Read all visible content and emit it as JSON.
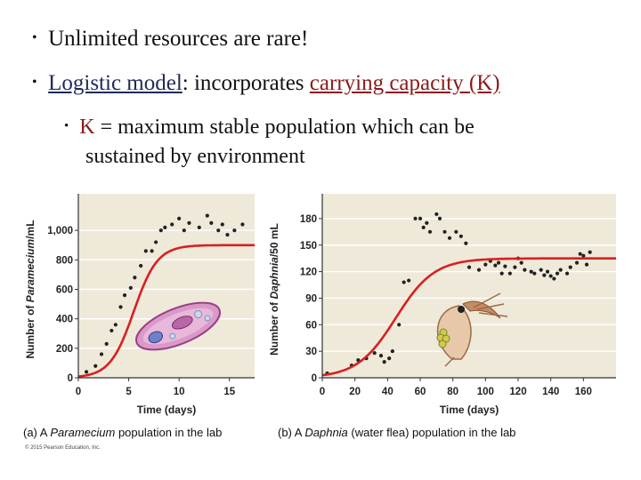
{
  "bullets": {
    "b1": "Unlimited resources are rare!",
    "b2_term": "Logistic model",
    "b2_mid": ": incorporates ",
    "b2_cc": "carrying capacity ",
    "b2_k": "(K)",
    "b3_k": "K",
    "b3_rest": " = maximum stable population which can be",
    "b3_line2": "sustained by environment"
  },
  "colors": {
    "accent": "#8b1a1a",
    "plot_bg": "#efe9da",
    "curve": "#d82020",
    "points": "#222222"
  },
  "caption_a": {
    "prefix": "(a) A ",
    "italic": "Paramecium",
    "suffix": " population in the lab"
  },
  "caption_b": {
    "prefix": "(b) A ",
    "italic": "Daphnia",
    "suffix": " (water flea) population in the lab"
  },
  "copyright": "© 2015 Pearson Education, Inc.",
  "chart_data": [
    {
      "type": "scatter",
      "ylabel_prefix": "Number of ",
      "ylabel_italic": "Paramecium",
      "ylabel_suffix": "/mL",
      "xlabel": "Time (days)",
      "xlim": [
        0,
        17.5
      ],
      "ylim": [
        0,
        1200
      ],
      "xticks": [
        0,
        5,
        10,
        15
      ],
      "yticks": [
        0,
        200,
        400,
        600,
        800,
        1000
      ],
      "ytick_labels": [
        "0",
        "200",
        "400",
        "600",
        "800",
        "1,000"
      ],
      "points": [
        [
          0.8,
          40
        ],
        [
          1.7,
          80
        ],
        [
          2.3,
          160
        ],
        [
          2.8,
          230
        ],
        [
          3.3,
          320
        ],
        [
          3.7,
          360
        ],
        [
          4.2,
          480
        ],
        [
          4.6,
          560
        ],
        [
          5.2,
          610
        ],
        [
          5.6,
          680
        ],
        [
          6.2,
          760
        ],
        [
          6.7,
          860
        ],
        [
          7.3,
          860
        ],
        [
          7.7,
          920
        ],
        [
          8.2,
          1000
        ],
        [
          8.6,
          1020
        ],
        [
          9.3,
          1040
        ],
        [
          10.0,
          1080
        ],
        [
          11.0,
          1050
        ],
        [
          12.0,
          1020
        ],
        [
          13.2,
          1050
        ],
        [
          14.3,
          1040
        ],
        [
          15.5,
          1000
        ],
        [
          16.3,
          1040
        ],
        [
          13.9,
          1000
        ],
        [
          10.5,
          1000
        ],
        [
          12.8,
          1100
        ],
        [
          14.8,
          970
        ]
      ],
      "curve_K": 900,
      "curve_r": 0.85,
      "curve_t0": 5.5
    },
    {
      "type": "scatter",
      "ylabel_prefix": "Number of ",
      "ylabel_italic": "Daphnia",
      "ylabel_suffix": "/50 mL",
      "xlabel": "Time (days)",
      "xlim": [
        0,
        180
      ],
      "ylim": [
        0,
        200
      ],
      "xticks": [
        0,
        20,
        40,
        60,
        80,
        100,
        120,
        140,
        160
      ],
      "yticks": [
        0,
        30,
        60,
        90,
        120,
        150,
        180
      ],
      "points": [
        [
          3,
          5
        ],
        [
          18,
          14
        ],
        [
          22,
          20
        ],
        [
          27,
          22
        ],
        [
          32,
          28
        ],
        [
          36,
          25
        ],
        [
          38,
          18
        ],
        [
          41,
          22
        ],
        [
          43,
          30
        ],
        [
          47,
          60
        ],
        [
          50,
          108
        ],
        [
          53,
          110
        ],
        [
          57,
          180
        ],
        [
          60,
          180
        ],
        [
          62,
          170
        ],
        [
          64,
          175
        ],
        [
          66,
          165
        ],
        [
          70,
          185
        ],
        [
          72,
          180
        ],
        [
          75,
          165
        ],
        [
          78,
          158
        ],
        [
          82,
          165
        ],
        [
          85,
          160
        ],
        [
          88,
          152
        ],
        [
          90,
          125
        ],
        [
          96,
          122
        ],
        [
          100,
          128
        ],
        [
          103,
          132
        ],
        [
          106,
          127
        ],
        [
          108,
          130
        ],
        [
          110,
          118
        ],
        [
          112,
          126
        ],
        [
          115,
          118
        ],
        [
          118,
          125
        ],
        [
          120,
          135
        ],
        [
          122,
          130
        ],
        [
          124,
          122
        ],
        [
          128,
          120
        ],
        [
          130,
          118
        ],
        [
          134,
          122
        ],
        [
          136,
          116
        ],
        [
          138,
          120
        ],
        [
          140,
          115
        ],
        [
          142,
          112
        ],
        [
          144,
          118
        ],
        [
          146,
          122
        ],
        [
          150,
          118
        ],
        [
          152,
          125
        ],
        [
          156,
          130
        ],
        [
          158,
          140
        ],
        [
          160,
          138
        ],
        [
          162,
          128
        ],
        [
          164,
          142
        ]
      ],
      "curve_K": 135,
      "curve_r": 0.085,
      "curve_t0": 45
    }
  ]
}
